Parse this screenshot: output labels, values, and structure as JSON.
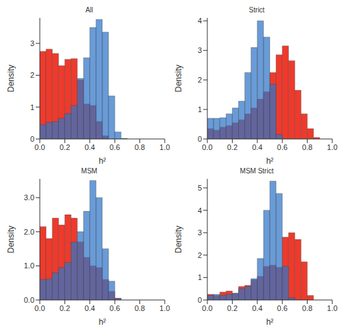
{
  "chart_data": [
    {
      "type": "histogram",
      "title": "All",
      "x_label": "h²",
      "y_label": "Density",
      "bins": [
        0,
        0.05,
        0.1,
        0.15,
        0.2,
        0.25,
        0.3,
        0.35,
        0.4,
        0.45,
        0.5,
        0.55,
        0.6,
        0.65,
        0.7,
        0.75,
        0.8,
        0.85,
        0.9,
        0.95,
        1
      ],
      "xlim": [
        0,
        1
      ],
      "xticks": [
        {
          "value": 0,
          "label": "0.0"
        },
        {
          "value": 0.2,
          "label": "0.2"
        },
        {
          "value": 0.4,
          "label": "0.4"
        },
        {
          "value": 0.6,
          "label": "0.6"
        },
        {
          "value": 0.8,
          "label": "0.8"
        },
        {
          "value": 1,
          "label": "1.0"
        }
      ],
      "ylim": [
        0,
        3.8
      ],
      "yticks": [
        0,
        1,
        2,
        3
      ],
      "series": [
        {
          "color": "#ee3a2c",
          "values": [
            2.75,
            2.82,
            2.68,
            2.3,
            2.5,
            2.52,
            1.85,
            1.1,
            1.05,
            0.55,
            0.1,
            0,
            0,
            0,
            0,
            0,
            0,
            0,
            0,
            0
          ]
        },
        {
          "color": "#2f74c8",
          "values": [
            0.45,
            0.52,
            0.55,
            0.65,
            0.8,
            1.05,
            1.9,
            2.55,
            3.5,
            3.75,
            3.35,
            1.35,
            0.22,
            0.02,
            0,
            0,
            0,
            0,
            0,
            0
          ]
        }
      ]
    },
    {
      "type": "histogram",
      "title": "Strict",
      "x_label": "h²",
      "y_label": "Density",
      "bins": [
        0,
        0.05,
        0.1,
        0.15,
        0.2,
        0.25,
        0.3,
        0.35,
        0.4,
        0.45,
        0.5,
        0.55,
        0.6,
        0.65,
        0.7,
        0.75,
        0.8,
        0.85,
        0.9,
        0.95,
        1
      ],
      "xlim": [
        0,
        1
      ],
      "xticks": [
        {
          "value": 0,
          "label": "0.0"
        },
        {
          "value": 0.2,
          "label": "0.2"
        },
        {
          "value": 0.4,
          "label": "0.4"
        },
        {
          "value": 0.6,
          "label": "0.6"
        },
        {
          "value": 0.8,
          "label": "0.8"
        },
        {
          "value": 1,
          "label": "1.0"
        }
      ],
      "ylim": [
        0,
        4.1
      ],
      "yticks": [
        0,
        1,
        2,
        3,
        4
      ],
      "series": [
        {
          "color": "#ee3a2c",
          "values": [
            0.35,
            0.3,
            0.4,
            0.45,
            0.55,
            0.65,
            0.85,
            1.05,
            1.35,
            1.6,
            2.25,
            2.85,
            3.15,
            2.65,
            1.65,
            0.85,
            0.35,
            0.05,
            0,
            0
          ]
        },
        {
          "color": "#2f74c8",
          "values": [
            0.7,
            0.7,
            0.72,
            0.85,
            1.05,
            1.28,
            2.25,
            3.1,
            4.0,
            3.45,
            1.85,
            0.15,
            0,
            0,
            0,
            0,
            0,
            0,
            0,
            0
          ]
        }
      ]
    },
    {
      "type": "histogram",
      "title": "MSM",
      "x_label": "h²",
      "y_label": "Density",
      "bins": [
        0,
        0.05,
        0.1,
        0.15,
        0.2,
        0.25,
        0.3,
        0.35,
        0.4,
        0.45,
        0.5,
        0.55,
        0.6,
        0.65,
        0.7,
        0.75,
        0.8,
        0.85,
        0.9,
        0.95,
        1
      ],
      "xlim": [
        0,
        1
      ],
      "xticks": [
        {
          "value": 0,
          "label": "0.0"
        },
        {
          "value": 0.2,
          "label": "0.2"
        },
        {
          "value": 0.4,
          "label": "0.4"
        },
        {
          "value": 0.6,
          "label": "0.6"
        },
        {
          "value": 0.8,
          "label": "0.8"
        },
        {
          "value": 1,
          "label": "1.0"
        }
      ],
      "ylim": [
        0,
        3.55
      ],
      "yticks": [
        {
          "value": 0,
          "label": "0.0"
        },
        {
          "value": 1,
          "label": "1.0"
        },
        {
          "value": 2,
          "label": "2.0"
        },
        {
          "value": 3,
          "label": "3.0"
        }
      ],
      "series": [
        {
          "color": "#ee3a2c",
          "values": [
            2.15,
            1.8,
            2.4,
            2.2,
            2.5,
            2.4,
            1.7,
            1.25,
            1.0,
            0.95,
            0.6,
            0.25,
            0.05,
            0,
            0,
            0,
            0,
            0,
            0,
            0
          ]
        },
        {
          "color": "#2f74c8",
          "values": [
            0.6,
            0.62,
            0.8,
            0.95,
            1.1,
            1.7,
            2.0,
            2.6,
            3.5,
            3.0,
            1.5,
            0.55,
            0.05,
            0,
            0,
            0,
            0,
            0,
            0,
            0
          ]
        }
      ]
    },
    {
      "type": "histogram",
      "title": "MSM Strict",
      "x_label": "h²",
      "y_label": "Density",
      "bins": [
        0,
        0.05,
        0.1,
        0.15,
        0.2,
        0.25,
        0.3,
        0.35,
        0.4,
        0.45,
        0.5,
        0.55,
        0.6,
        0.65,
        0.7,
        0.75,
        0.8,
        0.85,
        0.9,
        0.95,
        1
      ],
      "xlim": [
        0,
        1
      ],
      "xticks": [
        {
          "value": 0,
          "label": "0.0"
        },
        {
          "value": 0.2,
          "label": "0.2"
        },
        {
          "value": 0.4,
          "label": "0.4"
        },
        {
          "value": 0.6,
          "label": "0.6"
        },
        {
          "value": 0.8,
          "label": "0.8"
        },
        {
          "value": 1,
          "label": "1.0"
        }
      ],
      "ylim": [
        0,
        5.4
      ],
      "yticks": [
        0,
        1,
        2,
        3,
        4,
        5
      ],
      "series": [
        {
          "color": "#ee3a2c",
          "values": [
            0.25,
            0.2,
            0.35,
            0.4,
            0.3,
            0.6,
            0.65,
            0.9,
            1.05,
            1.5,
            1.55,
            1.45,
            2.8,
            3.0,
            2.7,
            1.7,
            0.2,
            0,
            0,
            0
          ]
        },
        {
          "color": "#2f74c8",
          "values": [
            0.2,
            0.25,
            0.2,
            0.25,
            0.3,
            0.5,
            0.6,
            0.95,
            1.85,
            4.0,
            5.3,
            4.75,
            1.5,
            0.1,
            0,
            0,
            0,
            0,
            0,
            0
          ]
        }
      ]
    }
  ]
}
